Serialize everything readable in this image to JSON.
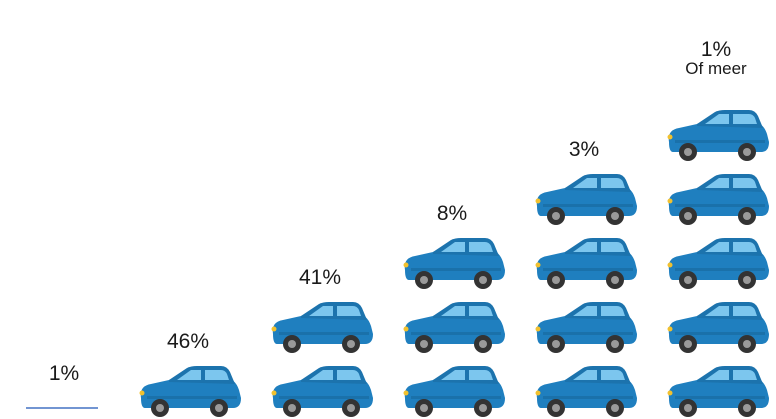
{
  "chart_data": {
    "type": "pictograph",
    "icon": "car-icon",
    "colors": {
      "body": "#1f7fbf",
      "roof": "#1c73ad",
      "window": "#7cc6ee",
      "wheel": "#333333",
      "zero_line": "#4472c4"
    },
    "categories": [
      "0",
      "1",
      "2",
      "3",
      "4",
      "5 of meer"
    ],
    "cars_per_column": [
      0,
      1,
      2,
      3,
      4,
      5
    ],
    "values": [
      1,
      46,
      41,
      8,
      3,
      1
    ],
    "labels": [
      "1%",
      "46%",
      "41%",
      "8%",
      "3%",
      "1%"
    ],
    "last_caption": "Of meer"
  }
}
